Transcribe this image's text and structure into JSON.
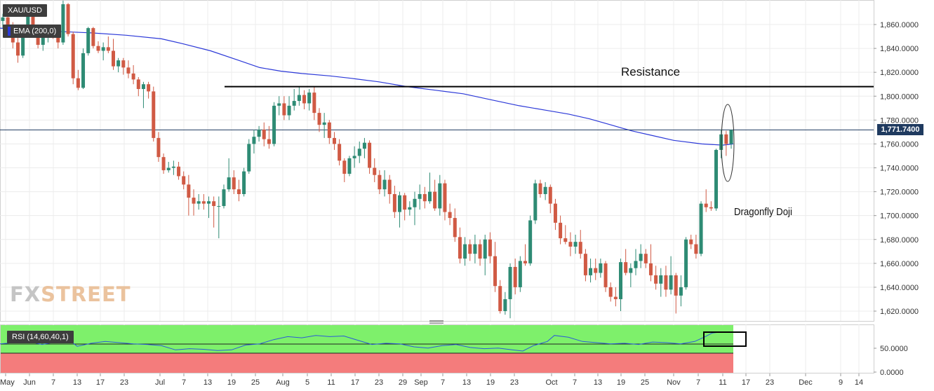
{
  "instrument": {
    "symbol": "XAU/USD",
    "ema_label": "EMA (200,0)"
  },
  "price_tag": "1,771.7400",
  "annotations": {
    "resistance": "Resistance",
    "doji": "Dragonfly Doji"
  },
  "logo": {
    "fx": "FX",
    "street": "STREET"
  },
  "rsi": {
    "label": "RSI (14,60,40,1)",
    "axis_ticks": [
      "50.0000",
      "0.0000"
    ],
    "upper_zone": 60,
    "lower_zone": 40
  },
  "colors": {
    "bull": "#2e8b74",
    "bear": "#d05a44",
    "ema": "#2c39d8",
    "rsi_green": "#7ef06b",
    "rsi_red": "#f47c7c",
    "resistance": "#000000"
  },
  "chart_data": {
    "type": "candlestick",
    "y_ticks": [
      "1,860.0000",
      "1,840.0000",
      "1,820.0000",
      "1,800.0000",
      "1,780.0000",
      "1,760.0000",
      "1,740.0000",
      "1,720.0000",
      "1,700.0000",
      "1,680.0000",
      "1,660.0000",
      "1,640.0000",
      "1,620.0000"
    ],
    "x_ticks": [
      "May",
      "Jun",
      "7",
      "13",
      "17",
      "23",
      "Jul",
      "7",
      "13",
      "19",
      "25",
      "Aug",
      "5",
      "11",
      "17",
      "23",
      "29",
      "Sep",
      "7",
      "13",
      "19",
      "23",
      "Oct",
      "7",
      "13",
      "19",
      "25",
      "Nov",
      "7",
      "11",
      "17",
      "23",
      "Dec",
      "9",
      "14"
    ],
    "ylim": [
      1613,
      1878
    ],
    "resistance_level": 1808,
    "last_price": 1771.74,
    "candles": [
      [
        1863,
        1869,
        1857,
        1866
      ],
      [
        1866,
        1870,
        1855,
        1858
      ],
      [
        1858,
        1862,
        1840,
        1845
      ],
      [
        1845,
        1850,
        1828,
        1834
      ],
      [
        1834,
        1858,
        1832,
        1855
      ],
      [
        1855,
        1876,
        1852,
        1872
      ],
      [
        1872,
        1874,
        1855,
        1858
      ],
      [
        1858,
        1860,
        1840,
        1843
      ],
      [
        1843,
        1852,
        1838,
        1850
      ],
      [
        1850,
        1858,
        1845,
        1855
      ],
      [
        1855,
        1857,
        1848,
        1852
      ],
      [
        1852,
        1856,
        1840,
        1845
      ],
      [
        1845,
        1880,
        1843,
        1877
      ],
      [
        1877,
        1878,
        1850,
        1852
      ],
      [
        1852,
        1854,
        1810,
        1815
      ],
      [
        1815,
        1822,
        1805,
        1807
      ],
      [
        1807,
        1840,
        1806,
        1836
      ],
      [
        1836,
        1858,
        1834,
        1857
      ],
      [
        1857,
        1858,
        1840,
        1842
      ],
      [
        1842,
        1846,
        1836,
        1838
      ],
      [
        1838,
        1845,
        1830,
        1841
      ],
      [
        1841,
        1850,
        1836,
        1838
      ],
      [
        1838,
        1848,
        1822,
        1825
      ],
      [
        1825,
        1832,
        1820,
        1830
      ],
      [
        1830,
        1832,
        1818,
        1824
      ],
      [
        1824,
        1830,
        1815,
        1819
      ],
      [
        1819,
        1826,
        1810,
        1814
      ],
      [
        1814,
        1816,
        1800,
        1806
      ],
      [
        1806,
        1812,
        1790,
        1810
      ],
      [
        1810,
        1812,
        1798,
        1804
      ],
      [
        1804,
        1808,
        1762,
        1765
      ],
      [
        1765,
        1770,
        1745,
        1749
      ],
      [
        1749,
        1752,
        1735,
        1738
      ],
      [
        1738,
        1745,
        1736,
        1740
      ],
      [
        1740,
        1746,
        1734,
        1741
      ],
      [
        1741,
        1745,
        1730,
        1733
      ],
      [
        1733,
        1737,
        1722,
        1726
      ],
      [
        1726,
        1734,
        1700,
        1715
      ],
      [
        1715,
        1722,
        1700,
        1710
      ],
      [
        1710,
        1718,
        1705,
        1712
      ],
      [
        1712,
        1718,
        1705,
        1710
      ],
      [
        1710,
        1716,
        1698,
        1712
      ],
      [
        1712,
        1716,
        1690,
        1708
      ],
      [
        1708,
        1716,
        1681,
        1708
      ],
      [
        1708,
        1726,
        1706,
        1722
      ],
      [
        1722,
        1748,
        1720,
        1732
      ],
      [
        1732,
        1738,
        1718,
        1722
      ],
      [
        1722,
        1730,
        1712,
        1718
      ],
      [
        1718,
        1740,
        1716,
        1737
      ],
      [
        1737,
        1764,
        1735,
        1760
      ],
      [
        1760,
        1772,
        1752,
        1766
      ],
      [
        1766,
        1775,
        1762,
        1772
      ],
      [
        1772,
        1778,
        1758,
        1764
      ],
      [
        1764,
        1775,
        1756,
        1760
      ],
      [
        1760,
        1795,
        1758,
        1792
      ],
      [
        1792,
        1800,
        1784,
        1794
      ],
      [
        1794,
        1800,
        1780,
        1784
      ],
      [
        1784,
        1800,
        1780,
        1792
      ],
      [
        1792,
        1806,
        1788,
        1796
      ],
      [
        1796,
        1808,
        1792,
        1801
      ],
      [
        1801,
        1805,
        1789,
        1794
      ],
      [
        1794,
        1806,
        1788,
        1803
      ],
      [
        1803,
        1808,
        1780,
        1786
      ],
      [
        1786,
        1790,
        1770,
        1776
      ],
      [
        1776,
        1786,
        1765,
        1778
      ],
      [
        1778,
        1780,
        1760,
        1765
      ],
      [
        1765,
        1770,
        1755,
        1760
      ],
      [
        1760,
        1764,
        1742,
        1746
      ],
      [
        1746,
        1748,
        1728,
        1735
      ],
      [
        1735,
        1750,
        1733,
        1748
      ],
      [
        1748,
        1758,
        1740,
        1750
      ],
      [
        1750,
        1762,
        1744,
        1756
      ],
      [
        1756,
        1765,
        1748,
        1761
      ],
      [
        1761,
        1763,
        1735,
        1740
      ],
      [
        1740,
        1748,
        1728,
        1734
      ],
      [
        1734,
        1738,
        1718,
        1722
      ],
      [
        1722,
        1738,
        1716,
        1730
      ],
      [
        1730,
        1734,
        1710,
        1718
      ],
      [
        1718,
        1725,
        1698,
        1703
      ],
      [
        1703,
        1720,
        1690,
        1717
      ],
      [
        1717,
        1719,
        1696,
        1705
      ],
      [
        1705,
        1712,
        1700,
        1707
      ],
      [
        1707,
        1720,
        1692,
        1714
      ],
      [
        1714,
        1726,
        1705,
        1718
      ],
      [
        1718,
        1724,
        1706,
        1712
      ],
      [
        1712,
        1736,
        1710,
        1720
      ],
      [
        1720,
        1730,
        1704,
        1706
      ],
      [
        1706,
        1734,
        1700,
        1727
      ],
      [
        1727,
        1730,
        1696,
        1703
      ],
      [
        1703,
        1710,
        1692,
        1698
      ],
      [
        1698,
        1706,
        1678,
        1682
      ],
      [
        1682,
        1690,
        1660,
        1664
      ],
      [
        1664,
        1682,
        1658,
        1676
      ],
      [
        1676,
        1680,
        1662,
        1668
      ],
      [
        1668,
        1684,
        1660,
        1676
      ],
      [
        1676,
        1680,
        1658,
        1664
      ],
      [
        1664,
        1684,
        1650,
        1680
      ],
      [
        1680,
        1686,
        1660,
        1666
      ],
      [
        1666,
        1678,
        1636,
        1641
      ],
      [
        1641,
        1646,
        1618,
        1620
      ],
      [
        1620,
        1636,
        1617,
        1630
      ],
      [
        1630,
        1660,
        1614,
        1657
      ],
      [
        1657,
        1664,
        1634,
        1640
      ],
      [
        1640,
        1666,
        1636,
        1662
      ],
      [
        1662,
        1676,
        1658,
        1660
      ],
      [
        1660,
        1700,
        1658,
        1696
      ],
      [
        1696,
        1730,
        1693,
        1727
      ],
      [
        1727,
        1730,
        1715,
        1718
      ],
      [
        1718,
        1728,
        1713,
        1724
      ],
      [
        1724,
        1726,
        1702,
        1710
      ],
      [
        1710,
        1714,
        1688,
        1694
      ],
      [
        1694,
        1700,
        1676,
        1681
      ],
      [
        1681,
        1692,
        1676,
        1678
      ],
      [
        1678,
        1686,
        1666,
        1674
      ],
      [
        1674,
        1684,
        1668,
        1678
      ],
      [
        1678,
        1688,
        1664,
        1668
      ],
      [
        1668,
        1672,
        1645,
        1650
      ],
      [
        1650,
        1664,
        1644,
        1656
      ],
      [
        1656,
        1664,
        1646,
        1652
      ],
      [
        1652,
        1664,
        1648,
        1660
      ],
      [
        1660,
        1662,
        1636,
        1640
      ],
      [
        1640,
        1644,
        1628,
        1632
      ],
      [
        1632,
        1640,
        1624,
        1630
      ],
      [
        1630,
        1664,
        1620,
        1661
      ],
      [
        1661,
        1672,
        1650,
        1652
      ],
      [
        1652,
        1660,
        1640,
        1656
      ],
      [
        1656,
        1672,
        1650,
        1662
      ],
      [
        1662,
        1676,
        1656,
        1668
      ],
      [
        1668,
        1672,
        1656,
        1660
      ],
      [
        1660,
        1676,
        1645,
        1650
      ],
      [
        1650,
        1658,
        1638,
        1643
      ],
      [
        1643,
        1656,
        1632,
        1650
      ],
      [
        1650,
        1658,
        1632,
        1638
      ],
      [
        1638,
        1666,
        1634,
        1650
      ],
      [
        1650,
        1652,
        1618,
        1633
      ],
      [
        1633,
        1650,
        1624,
        1640
      ],
      [
        1640,
        1682,
        1638,
        1680
      ],
      [
        1680,
        1684,
        1672,
        1676
      ],
      [
        1676,
        1684,
        1664,
        1668
      ],
      [
        1668,
        1712,
        1666,
        1710
      ],
      [
        1710,
        1722,
        1703,
        1707
      ],
      [
        1707,
        1712,
        1704,
        1706
      ],
      [
        1706,
        1756,
        1704,
        1755
      ],
      [
        1755,
        1772,
        1748,
        1768
      ],
      [
        1768,
        1771,
        1750,
        1760
      ],
      [
        1760,
        1771.74,
        1756,
        1771.74
      ]
    ],
    "ema_200": [
      [
        0,
        1857
      ],
      [
        20,
        1856
      ],
      [
        50,
        1855
      ],
      [
        90,
        1854
      ],
      [
        130,
        1853
      ],
      [
        180,
        1851
      ],
      [
        230,
        1848
      ],
      [
        260,
        1844
      ],
      [
        300,
        1838
      ],
      [
        340,
        1830
      ],
      [
        370,
        1824
      ],
      [
        400,
        1821
      ],
      [
        430,
        1819
      ],
      [
        470,
        1817
      ],
      [
        500,
        1815
      ],
      [
        540,
        1812
      ],
      [
        580,
        1808
      ],
      [
        620,
        1805
      ],
      [
        660,
        1802
      ],
      [
        700,
        1797
      ],
      [
        740,
        1792
      ],
      [
        780,
        1788
      ],
      [
        810,
        1785
      ],
      [
        840,
        1781
      ],
      [
        870,
        1776
      ],
      [
        900,
        1771
      ],
      [
        930,
        1767
      ],
      [
        960,
        1763
      ],
      [
        1000,
        1760
      ],
      [
        1030,
        1759
      ],
      [
        1045,
        1760
      ]
    ],
    "rsi_values": [
      [
        0,
        48
      ],
      [
        20,
        50
      ],
      [
        40,
        52
      ],
      [
        60,
        47
      ],
      [
        80,
        51
      ],
      [
        100,
        53
      ],
      [
        110,
        44
      ],
      [
        130,
        49
      ],
      [
        150,
        52
      ],
      [
        170,
        50
      ],
      [
        190,
        48
      ],
      [
        210,
        47
      ],
      [
        230,
        45
      ],
      [
        250,
        38
      ],
      [
        270,
        40
      ],
      [
        290,
        39
      ],
      [
        310,
        37
      ],
      [
        330,
        38
      ],
      [
        350,
        46
      ],
      [
        370,
        48
      ],
      [
        390,
        55
      ],
      [
        410,
        60
      ],
      [
        430,
        58
      ],
      [
        450,
        62
      ],
      [
        470,
        60
      ],
      [
        490,
        61
      ],
      [
        510,
        54
      ],
      [
        530,
        47
      ],
      [
        550,
        49
      ],
      [
        570,
        48
      ],
      [
        590,
        43
      ],
      [
        610,
        41
      ],
      [
        630,
        45
      ],
      [
        650,
        47
      ],
      [
        670,
        42
      ],
      [
        690,
        40
      ],
      [
        710,
        41
      ],
      [
        730,
        38
      ],
      [
        745,
        36
      ],
      [
        760,
        45
      ],
      [
        780,
        52
      ],
      [
        790,
        62
      ],
      [
        810,
        59
      ],
      [
        830,
        52
      ],
      [
        850,
        50
      ],
      [
        870,
        48
      ],
      [
        890,
        49
      ],
      [
        910,
        47
      ],
      [
        930,
        51
      ],
      [
        950,
        50
      ],
      [
        970,
        48
      ],
      [
        990,
        52
      ],
      [
        1005,
        60
      ],
      [
        1015,
        66
      ],
      [
        1030,
        68
      ],
      [
        1045,
        68
      ]
    ]
  }
}
